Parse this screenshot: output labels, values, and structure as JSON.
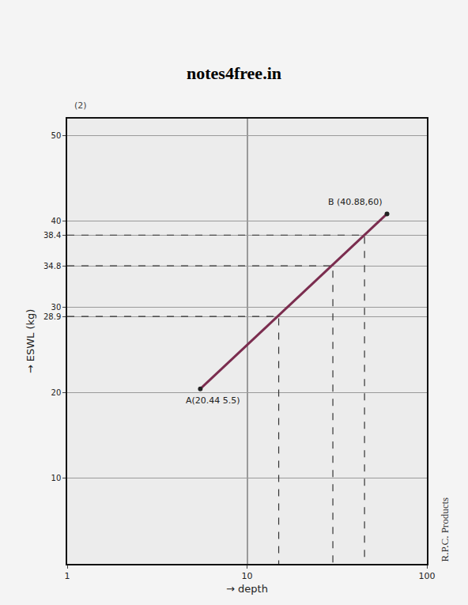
{
  "chart_data": {
    "type": "line",
    "title": "notes4free.in",
    "x_label": "→ depth",
    "y_label": "→ ESWL (kg)",
    "x": [
      5.5,
      60
    ],
    "values": [
      20.44,
      40.88
    ],
    "point_labels": [
      "A(20.44 5.5)",
      "B (40.88,60)"
    ],
    "color": "#7b2d4f",
    "marker": "circle",
    "guides": [
      {
        "x": 15,
        "y": 28.9
      },
      {
        "x": 30,
        "y": 34.8
      },
      {
        "x": 45,
        "y": 38.4
      }
    ],
    "guide_color": "#333333",
    "guide_line_style": "dash",
    "log": "x",
    "xlim": [
      1,
      100
    ],
    "xticks": [
      1,
      10,
      100
    ],
    "ylim": [
      0,
      52
    ],
    "yticks": [
      10,
      20,
      28.9,
      30,
      34.8,
      38.4,
      40,
      50
    ],
    "grid": true,
    "notes": [
      "(2)",
      "R.P.C. Products"
    ]
  }
}
